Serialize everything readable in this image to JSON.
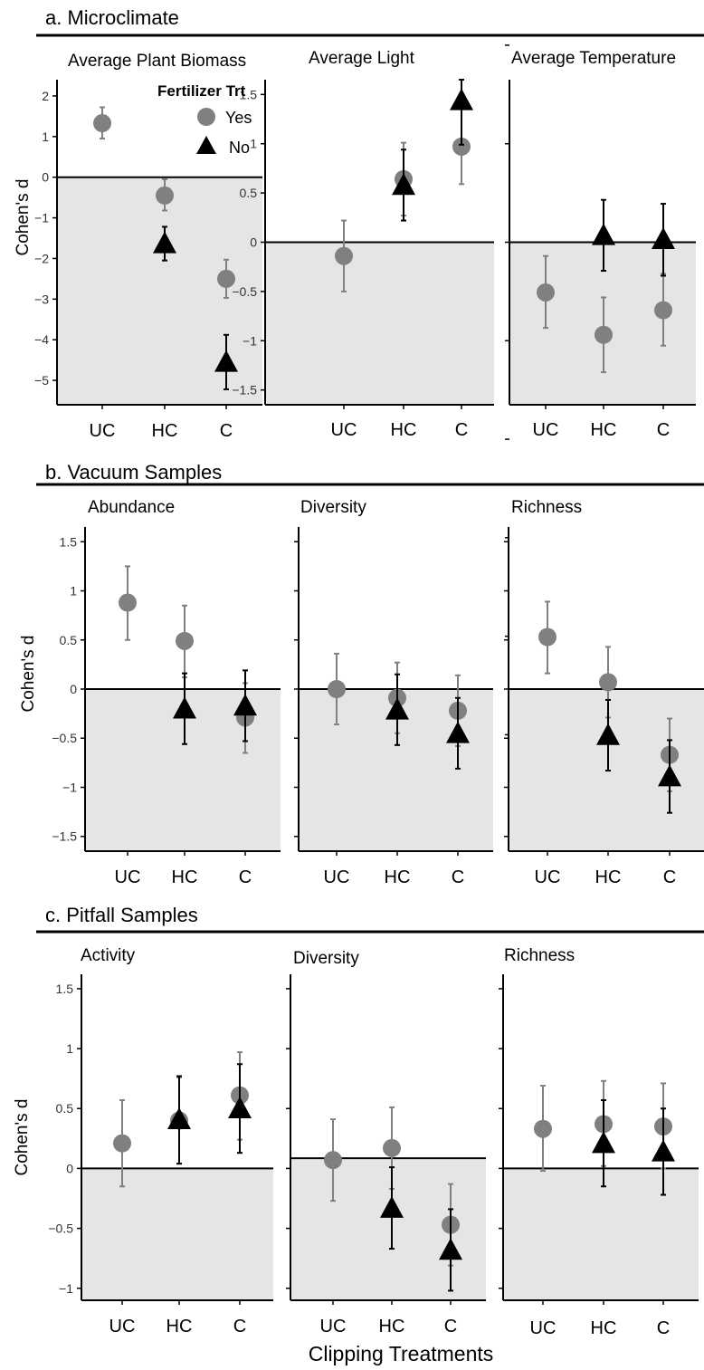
{
  "legend": {
    "title": "Fertilizer Trt",
    "items": [
      {
        "label": "Yes",
        "shape": "circle",
        "color": "#808080"
      },
      {
        "label": "No",
        "shape": "triangle",
        "color": "#000000"
      }
    ]
  },
  "x_axis_label": "Clipping Treatments",
  "sections": [
    {
      "title": "a. Microclimate"
    },
    {
      "title": "b. Vacuum Samples"
    },
    {
      "title": "c. Pitfall Samples"
    }
  ],
  "chart_data": [
    {
      "type": "scatter",
      "section": "a. Microclimate",
      "title": "Average Plant Biomass",
      "ylabel": "Cohen's d",
      "categories": [
        "UC",
        "HC",
        "C"
      ],
      "ylim": [
        -5.6,
        2.4
      ],
      "yticks": [
        2,
        1,
        0,
        -1,
        -2,
        -3,
        -4,
        -5
      ],
      "series": [
        {
          "name": "Yes",
          "values": [
            1.33,
            -0.45,
            -2.5
          ],
          "lower": [
            0.95,
            -0.82,
            -2.97
          ],
          "upper": [
            1.72,
            -0.05,
            -2.03
          ]
        },
        {
          "name": "No",
          "values": [
            null,
            -1.63,
            -4.55
          ],
          "lower": [
            null,
            -2.05,
            -5.22
          ],
          "upper": [
            null,
            -1.22,
            -3.88
          ]
        }
      ]
    },
    {
      "type": "scatter",
      "section": "a. Microclimate",
      "title": "Average Light",
      "ylabel": "",
      "categories": [
        "UC",
        "HC",
        "C"
      ],
      "ylim": [
        -1.65,
        1.65
      ],
      "yticks": [
        1.5,
        1,
        0.5,
        0,
        -0.5,
        -1,
        -1.5
      ],
      "series": [
        {
          "name": "Yes",
          "values": [
            -0.14,
            0.64,
            0.97
          ],
          "lower": [
            -0.5,
            0.27,
            0.59
          ],
          "upper": [
            0.22,
            1.01,
            1.35
          ]
        },
        {
          "name": "No",
          "values": [
            null,
            0.58,
            1.44
          ],
          "lower": [
            null,
            0.22,
            0.99
          ],
          "upper": [
            null,
            0.94,
            1.65
          ]
        }
      ]
    },
    {
      "type": "scatter",
      "section": "a. Microclimate",
      "title": "Average Temperature",
      "ylabel": "",
      "categories": [
        "UC",
        "HC",
        "C"
      ],
      "ylim": [
        -1.65,
        1.65
      ],
      "yticks": [],
      "series": [
        {
          "name": "Yes",
          "values": [
            -0.51,
            -0.94,
            -0.69
          ],
          "lower": [
            -0.87,
            -1.32,
            -1.05
          ],
          "upper": [
            -0.14,
            -0.56,
            -0.32
          ]
        },
        {
          "name": "No",
          "values": [
            null,
            0.07,
            0.03
          ],
          "lower": [
            null,
            -0.29,
            -0.34
          ],
          "upper": [
            null,
            0.43,
            0.39
          ]
        }
      ]
    },
    {
      "type": "scatter",
      "section": "b. Vacuum Samples",
      "title": "Abundance",
      "ylabel": "Cohen's d",
      "categories": [
        "UC",
        "HC",
        "C"
      ],
      "ylim": [
        -1.65,
        1.65
      ],
      "yticks": [
        1.5,
        1,
        0.5,
        0,
        -0.5,
        -1,
        -1.5
      ],
      "series": [
        {
          "name": "Yes",
          "values": [
            0.88,
            0.49,
            -0.29
          ],
          "lower": [
            0.5,
            0.12,
            -0.65
          ],
          "upper": [
            1.25,
            0.85,
            0.06
          ]
        },
        {
          "name": "No",
          "values": [
            null,
            -0.2,
            -0.17
          ],
          "lower": [
            null,
            -0.56,
            -0.53
          ],
          "upper": [
            null,
            0.16,
            0.19
          ]
        }
      ]
    },
    {
      "type": "scatter",
      "section": "b. Vacuum Samples",
      "title": "Diversity",
      "ylabel": "",
      "categories": [
        "UC",
        "HC",
        "C"
      ],
      "ylim": [
        -1.65,
        1.65
      ],
      "yticks": [],
      "series": [
        {
          "name": "Yes",
          "values": [
            0.0,
            -0.09,
            -0.22
          ],
          "lower": [
            -0.36,
            -0.45,
            -0.58
          ],
          "upper": [
            0.36,
            0.27,
            0.14
          ]
        },
        {
          "name": "No",
          "values": [
            null,
            -0.21,
            -0.45
          ],
          "lower": [
            null,
            -0.57,
            -0.81
          ],
          "upper": [
            null,
            0.15,
            -0.09
          ]
        }
      ]
    },
    {
      "type": "scatter",
      "section": "b. Vacuum Samples",
      "title": "Richness",
      "ylabel": "",
      "categories": [
        "UC",
        "HC",
        "C"
      ],
      "ylim": [
        -1.65,
        1.65
      ],
      "yticks": [],
      "series": [
        {
          "name": "Yes",
          "values": [
            0.53,
            0.07,
            -0.67
          ],
          "lower": [
            0.16,
            -0.29,
            -1.04
          ],
          "upper": [
            0.89,
            0.43,
            -0.3
          ]
        },
        {
          "name": "No",
          "values": [
            null,
            -0.47,
            -0.89
          ],
          "lower": [
            null,
            -0.83,
            -1.26
          ],
          "upper": [
            null,
            -0.11,
            -0.52
          ]
        }
      ]
    },
    {
      "type": "scatter",
      "section": "c. Pitfall Samples",
      "title": "Activity",
      "ylabel": "Cohen's d",
      "categories": [
        "UC",
        "HC",
        "C"
      ],
      "ylim": [
        -1.1,
        1.62
      ],
      "yticks": [
        1.5,
        1,
        0.5,
        0,
        -0.5,
        -1
      ],
      "series": [
        {
          "name": "Yes",
          "values": [
            0.21,
            0.4,
            0.61
          ],
          "lower": [
            -0.15,
            0.04,
            0.24
          ],
          "upper": [
            0.57,
            0.76,
            0.97
          ]
        },
        {
          "name": "No",
          "values": [
            null,
            0.41,
            0.5
          ],
          "lower": [
            null,
            0.04,
            0.13
          ],
          "upper": [
            null,
            0.77,
            0.87
          ]
        }
      ]
    },
    {
      "type": "scatter",
      "section": "c. Pitfall Samples",
      "title": "Diversity",
      "ylabel": "",
      "categories": [
        "UC",
        "HC",
        "C"
      ],
      "ylim": [
        -1.1,
        1.62
      ],
      "yticks": [],
      "series": [
        {
          "name": "Yes",
          "values": [
            0.07,
            0.17,
            -0.47
          ],
          "lower": [
            -0.27,
            -0.17,
            -0.81
          ],
          "upper": [
            0.41,
            0.51,
            -0.13
          ]
        },
        {
          "name": "No",
          "values": [
            null,
            -0.33,
            -0.68
          ],
          "lower": [
            null,
            -0.67,
            -1.02
          ],
          "upper": [
            null,
            0.01,
            -0.34
          ]
        }
      ]
    },
    {
      "type": "scatter",
      "section": "c. Pitfall Samples",
      "title": "Richness",
      "ylabel": "",
      "categories": [
        "UC",
        "HC",
        "C"
      ],
      "ylim": [
        -1.1,
        1.62
      ],
      "yticks": [],
      "series": [
        {
          "name": "Yes",
          "values": [
            0.33,
            0.37,
            0.35
          ],
          "lower": [
            -0.02,
            0.02,
            0.0
          ],
          "upper": [
            0.69,
            0.73,
            0.71
          ]
        },
        {
          "name": "No",
          "values": [
            null,
            0.21,
            0.14
          ],
          "lower": [
            null,
            -0.15,
            -0.22
          ],
          "upper": [
            null,
            0.57,
            0.5
          ]
        }
      ]
    }
  ]
}
